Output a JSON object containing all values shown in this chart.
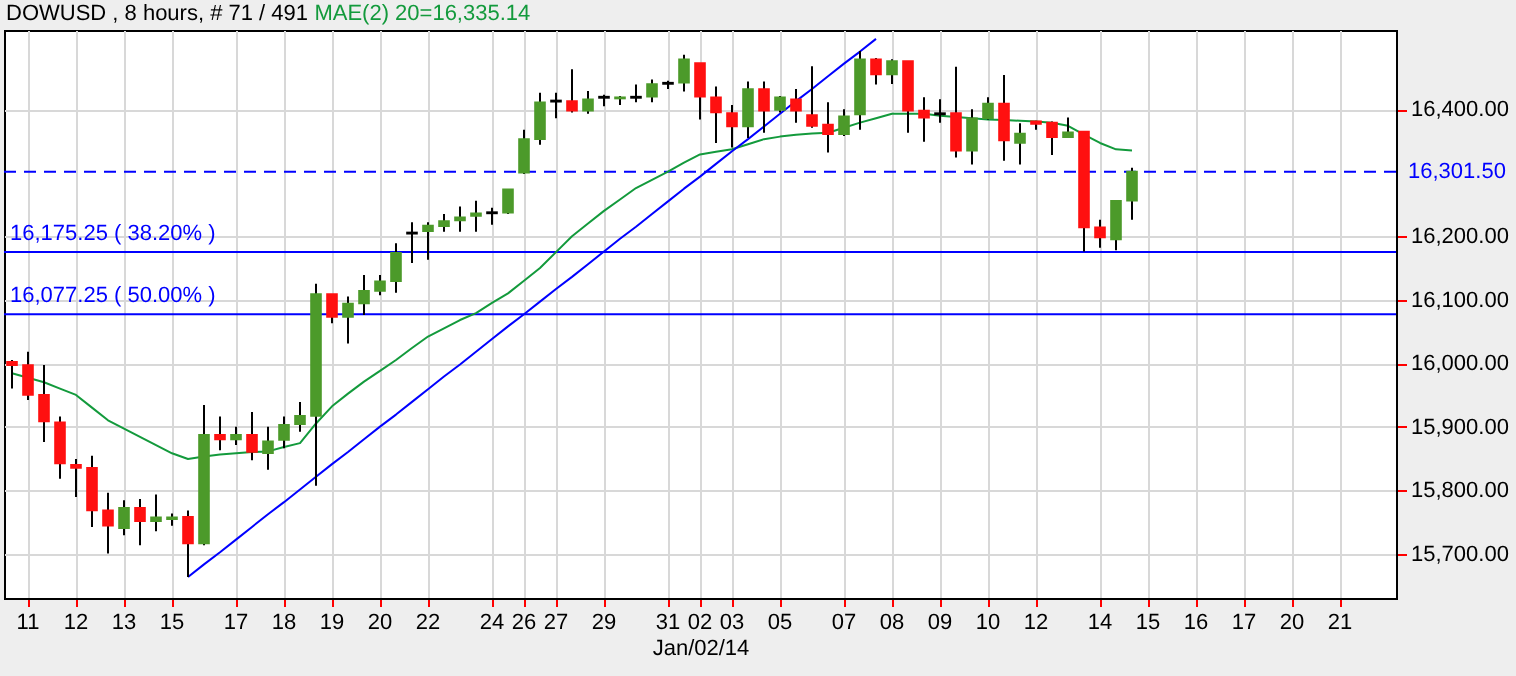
{
  "chart_data": {
    "type": "candlestick",
    "title": "DOWUSD , 8 hours, # 71 / 491",
    "xlabel": "Jan/02/14",
    "categories": [
      null,
      "11",
      null,
      null,
      "12",
      null,
      null,
      "13",
      null,
      null,
      "15",
      null,
      null,
      null,
      "17",
      null,
      null,
      "18",
      null,
      null,
      "19",
      null,
      null,
      "20",
      null,
      null,
      "22",
      null,
      null,
      null,
      "24",
      null,
      "26",
      null,
      "27",
      null,
      null,
      "29",
      null,
      null,
      null,
      "31",
      null,
      "02",
      null,
      "03",
      null,
      null,
      "05",
      null,
      null,
      null,
      "07",
      null,
      null,
      "08",
      null,
      null,
      "09",
      null,
      null,
      "10",
      null,
      null,
      "12",
      null,
      null,
      null,
      "14",
      null,
      null,
      "15",
      null,
      null,
      "16",
      null,
      null,
      "17",
      null,
      null,
      "20",
      null,
      null,
      "21",
      null,
      null,
      null
    ],
    "ohlc": [
      [
        16002,
        16005,
        15960,
        15997
      ],
      [
        15997,
        16018,
        15942,
        15950
      ],
      [
        15950,
        15997,
        15876,
        15908
      ],
      [
        15907,
        15916,
        15818,
        15842
      ],
      [
        15840,
        15849,
        15789,
        15835
      ],
      [
        15835,
        15854,
        15742,
        15768
      ],
      [
        15768,
        15796,
        15700,
        15744
      ],
      [
        15740,
        15784,
        15729,
        15772
      ],
      [
        15772,
        15786,
        15713,
        15751
      ],
      [
        15751,
        15793,
        15735,
        15757
      ],
      [
        15754,
        15763,
        15744,
        15757
      ],
      [
        15758,
        15768,
        15663,
        15716
      ],
      [
        15716,
        15934,
        15713,
        15887
      ],
      [
        15887,
        15916,
        15863,
        15880
      ],
      [
        15880,
        15900,
        15871,
        15887
      ],
      [
        15887,
        15923,
        15847,
        15860
      ],
      [
        15858,
        15900,
        15832,
        15877
      ],
      [
        15879,
        15916,
        15866,
        15903
      ],
      [
        15904,
        15939,
        15892,
        15917
      ],
      [
        15917,
        16125,
        15807,
        16109
      ],
      [
        16109,
        16109,
        16063,
        16073
      ],
      [
        16073,
        16105,
        16031,
        16094
      ],
      [
        16094,
        16139,
        16076,
        16114
      ],
      [
        16114,
        16139,
        16107,
        16129
      ],
      [
        16129,
        16189,
        16111,
        16174
      ],
      [
        16204,
        16222,
        16158,
        16206
      ],
      [
        16208,
        16222,
        16163,
        16217
      ],
      [
        16216,
        16235,
        16207,
        16224
      ],
      [
        16225,
        16247,
        16207,
        16230
      ],
      [
        16232,
        16256,
        16207,
        16236
      ],
      [
        16236,
        16245,
        16218,
        16238
      ],
      [
        16237,
        16274,
        16235,
        16274
      ],
      [
        16300,
        16368,
        16298,
        16353
      ],
      [
        16353,
        16426,
        16344,
        16411
      ],
      [
        16412,
        16426,
        16386,
        16414
      ],
      [
        16413,
        16463,
        16395,
        16398
      ],
      [
        16398,
        16429,
        16393,
        16416
      ],
      [
        16418,
        16423,
        16405,
        16420
      ],
      [
        16417,
        16421,
        16407,
        16419
      ],
      [
        16418,
        16439,
        16411,
        16420
      ],
      [
        16420,
        16447,
        16411,
        16440
      ],
      [
        16440,
        16445,
        16432,
        16442
      ],
      [
        16442,
        16486,
        16428,
        16479
      ],
      [
        16473,
        16473,
        16384,
        16420
      ],
      [
        16419,
        16436,
        16347,
        16395
      ],
      [
        16394,
        16407,
        16340,
        16373
      ],
      [
        16373,
        16444,
        16355,
        16432
      ],
      [
        16432,
        16444,
        16363,
        16398
      ],
      [
        16399,
        16421,
        16395,
        16419
      ],
      [
        16416,
        16432,
        16379,
        16398
      ],
      [
        16391,
        16468,
        16371,
        16374
      ],
      [
        16376,
        16411,
        16332,
        16361
      ],
      [
        16361,
        16400,
        16358,
        16389
      ],
      [
        16392,
        16492,
        16368,
        16479
      ],
      [
        16479,
        16481,
        16439,
        16455
      ],
      [
        16455,
        16479,
        16440,
        16476
      ],
      [
        16476,
        16476,
        16363,
        16398
      ],
      [
        16398,
        16419,
        16349,
        16387
      ],
      [
        16392,
        16416,
        16379,
        16394
      ],
      [
        16394,
        16467,
        16324,
        16335
      ],
      [
        16335,
        16400,
        16313,
        16386
      ],
      [
        16386,
        16419,
        16384,
        16409
      ],
      [
        16409,
        16454,
        16319,
        16351
      ],
      [
        16347,
        16378,
        16313,
        16362
      ],
      [
        16381,
        16382,
        16368,
        16377
      ],
      [
        16379,
        16381,
        16328,
        16356
      ],
      [
        16356,
        16387,
        16356,
        16364
      ],
      [
        16365,
        16365,
        16176,
        16214
      ],
      [
        16214,
        16226,
        16182,
        16198
      ],
      [
        16195,
        16256,
        16178,
        16256
      ],
      [
        16256,
        16308,
        16226,
        16302
      ],
      null,
      null,
      null,
      null,
      null,
      null,
      null,
      null,
      null,
      null,
      null,
      null,
      null,
      null,
      null,
      null
    ],
    "colors": [
      "#ff1010",
      "#ff1010",
      "#ff1010",
      "#ff1010",
      "#ff1010",
      "#ff1010",
      "#ff1010",
      "#4c9a2a",
      "#ff1010",
      "#4c9a2a",
      "#4c9a2a",
      "#ff1010",
      "#4c9a2a",
      "#ff1010",
      "#4c9a2a",
      "#ff1010",
      "#4c9a2a",
      "#4c9a2a",
      "#4c9a2a",
      "#4c9a2a",
      "#ff1010",
      "#4c9a2a",
      "#4c9a2a",
      "#4c9a2a",
      "#4c9a2a",
      "#000000",
      "#4c9a2a",
      "#4c9a2a",
      "#4c9a2a",
      "#4c9a2a",
      "#000000",
      "#4c9a2a",
      "#4c9a2a",
      "#4c9a2a",
      "#000000",
      "#ff1010",
      "#4c9a2a",
      "#000000",
      "#4c9a2a",
      "#000000",
      "#4c9a2a",
      "#000000",
      "#4c9a2a",
      "#ff1010",
      "#ff1010",
      "#ff1010",
      "#4c9a2a",
      "#ff1010",
      "#4c9a2a",
      "#ff1010",
      "#ff1010",
      "#ff1010",
      "#4c9a2a",
      "#4c9a2a",
      "#ff1010",
      "#4c9a2a",
      "#ff1010",
      "#ff1010",
      "#000000",
      "#ff1010",
      "#4c9a2a",
      "#4c9a2a",
      "#ff1010",
      "#4c9a2a",
      "#ff1010",
      "#ff1010",
      "#4c9a2a",
      "#ff1010",
      "#ff1010",
      "#4c9a2a",
      "#4c9a2a",
      null,
      null,
      null,
      null,
      null,
      null,
      null,
      null,
      null,
      null,
      null,
      null,
      null,
      null,
      null,
      null
    ],
    "series": [
      {
        "type": "line",
        "name": "MAE(2) 20=16,335.14",
        "color": "#139a3c",
        "values": [
          15984,
          15977,
          15970,
          15960,
          15950,
          15930,
          15910,
          15897,
          15884,
          15871,
          15858,
          15849,
          15853,
          15856,
          15858,
          15860,
          15861,
          15868,
          15874,
          15905,
          15932,
          15952,
          15971,
          15988,
          16005,
          16024,
          16042,
          16055,
          16068,
          16079,
          16095,
          16110,
          16130,
          16150,
          16175,
          16200,
          16220,
          16240,
          16258,
          16276,
          16289,
          16302,
          16316,
          16329,
          16333,
          16337,
          16345,
          16353,
          16357,
          16360,
          16362,
          16363,
          16371,
          16379,
          16386,
          16393,
          16393,
          16393,
          16390,
          16388,
          16386,
          16384,
          16383,
          16382,
          16381,
          16379,
          16374,
          16360,
          16347,
          16337,
          16335,
          null,
          null,
          null,
          null,
          null,
          null,
          null,
          null,
          null,
          null,
          null,
          null,
          null,
          null,
          null,
          null
        ]
      },
      {
        "type": "line",
        "color": "#0000ff",
        "values": [
          null,
          null,
          null,
          null,
          null,
          null,
          null,
          null,
          null,
          null,
          null,
          15663,
          15683,
          15702,
          15722,
          15742,
          15762,
          15781,
          15801,
          15821,
          15841,
          15860,
          15880,
          15900,
          15919,
          15939,
          15959,
          15979,
          15998,
          16018,
          16038,
          16058,
          16077,
          16097,
          16117,
          16136,
          16156,
          16176,
          16196,
          16215,
          16235,
          16255,
          16275,
          16294,
          16314,
          16334,
          16353,
          16373,
          16393,
          16413,
          16432,
          16452,
          16472,
          16491,
          16511,
          null,
          null,
          null,
          null,
          null,
          null,
          null,
          null,
          null,
          null,
          null,
          null,
          null,
          null,
          null,
          null,
          null,
          null,
          null,
          null,
          null,
          null,
          null,
          null,
          null,
          null,
          null,
          null,
          null,
          null,
          null,
          null
        ]
      }
    ],
    "ylim": [
      15630,
      16525
    ],
    "yticks": [
      {
        "value": 15700,
        "label": "15,700.00"
      },
      {
        "value": 15800,
        "label": "15,800.00"
      },
      {
        "value": 15900,
        "label": "15,900.00"
      },
      {
        "value": 16000,
        "label": "16,000.00"
      },
      {
        "value": 16100,
        "label": "16,100.00"
      },
      {
        "value": 16200,
        "label": "16,200.00"
      },
      {
        "value": 16400,
        "label": "16,400.00"
      }
    ],
    "ref_lines": [
      {
        "axis": "y",
        "value": 16301.5,
        "label": "16,301.50",
        "color": "#0000ff",
        "line_style": "dashed"
      },
      {
        "axis": "y",
        "value": 16175.25,
        "label": "16,175.25 ( 38.20% )",
        "color": "#0000ff",
        "line_style": "solid"
      },
      {
        "axis": "y",
        "value": 16077.25,
        "label": "16,077.25 ( 50.00% )",
        "color": "#0000ff",
        "line_style": "solid"
      }
    ],
    "grid": true
  }
}
